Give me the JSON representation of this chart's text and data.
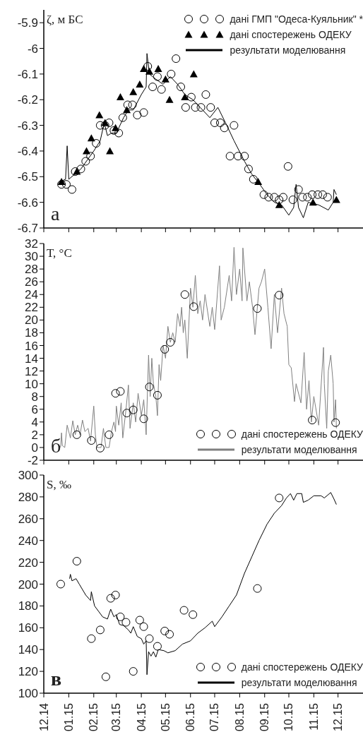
{
  "chart_data": [
    {
      "type": "line",
      "ylabel": "ζ, м БС",
      "annotations": [
        "а"
      ],
      "legend": "top right",
      "tick_labels": "y",
      "xlim": [
        "2014-12-01",
        "2016-01-01"
      ],
      "xticks": [
        {
          "value": "2014-12-01",
          "label": null
        },
        {
          "value": "2015-01-01",
          "label": null
        },
        {
          "value": "2015-02-01",
          "label": null
        },
        {
          "value": "2015-03-01",
          "label": null
        },
        {
          "value": "2015-04-01",
          "label": null
        },
        {
          "value": "2015-05-01",
          "label": null
        },
        {
          "value": "2015-06-01",
          "label": null
        },
        {
          "value": "2015-07-01",
          "label": null
        },
        {
          "value": "2015-08-01",
          "label": null
        },
        {
          "value": "2015-09-01",
          "label": null
        },
        {
          "value": "2015-10-01",
          "label": null
        },
        {
          "value": "2015-11-01",
          "label": null
        },
        {
          "value": "2015-12-01",
          "label": null
        }
      ],
      "ylim": [
        -6.7,
        -5.85
      ],
      "yticks": [
        -6.7,
        -6.6,
        -6.5,
        -6.4,
        -6.3,
        -6.2,
        -6.1,
        -6,
        -5.9
      ],
      "series": [
        {
          "name": "дані ГМП \"Одеса-Куяльник\" *",
          "type": "scatter",
          "marker": "circle",
          "color": "#000000",
          "x": [
            "2014-12-23",
            "2014-12-29",
            "2015-01-05",
            "2015-01-09",
            "2015-01-16",
            "2015-01-22",
            "2015-01-28",
            "2015-02-04",
            "2015-02-09",
            "2015-02-15",
            "2015-02-20",
            "2015-02-26",
            "2015-03-04",
            "2015-03-09",
            "2015-03-15",
            "2015-03-21",
            "2015-03-27",
            "2015-04-04",
            "2015-04-09",
            "2015-04-15",
            "2015-04-21",
            "2015-04-26",
            "2015-05-08",
            "2015-05-14",
            "2015-05-20",
            "2015-05-26",
            "2015-06-02",
            "2015-06-07",
            "2015-06-14",
            "2015-06-20",
            "2015-06-26",
            "2015-07-01",
            "2015-07-08",
            "2015-07-13",
            "2015-07-20",
            "2015-07-25",
            "2015-07-30",
            "2015-08-07",
            "2015-08-12",
            "2015-08-18",
            "2015-08-31",
            "2015-09-06",
            "2015-09-13",
            "2015-09-19",
            "2015-09-24",
            "2015-09-30",
            "2015-10-06",
            "2015-10-13",
            "2015-10-18",
            "2015-10-24",
            "2015-10-30",
            "2015-11-06",
            "2015-11-12",
            "2015-11-18"
          ],
          "values": [
            -6.53,
            -6.53,
            -6.55,
            -6.48,
            -6.47,
            -6.44,
            -6.42,
            -6.37,
            -6.3,
            -6.3,
            -6.29,
            -6.32,
            -6.33,
            -6.27,
            -6.22,
            -6.22,
            -6.26,
            -6.25,
            -6.07,
            -6.15,
            -6.11,
            -6.16,
            -6.1,
            -6.04,
            -6.15,
            -6.23,
            -6.19,
            -6.23,
            -6.23,
            -6.18,
            -6.23,
            -6.29,
            -6.29,
            -6.31,
            -6.42,
            -6.3,
            -6.42,
            -6.42,
            -6.47,
            -6.51,
            -6.57,
            -6.58,
            -6.58,
            -6.59,
            -6.58,
            -6.46,
            -6.59,
            -6.55,
            -6.58,
            -6.58,
            -6.57,
            -6.57,
            -6.57,
            -6.58
          ]
        },
        {
          "name": "дані спостережень ОДЕКУ",
          "type": "scatter",
          "marker": "triangle",
          "color": "#000000",
          "x": [
            "2014-12-23",
            "2015-01-11",
            "2015-01-23",
            "2015-01-29",
            "2015-02-08",
            "2015-02-15",
            "2015-02-21",
            "2015-02-28",
            "2015-03-06",
            "2015-03-14",
            "2015-03-22",
            "2015-03-30",
            "2015-04-04",
            "2015-04-11",
            "2015-04-22",
            "2015-05-01",
            "2015-05-06",
            "2015-05-25",
            "2015-06-05",
            "2015-08-24",
            "2015-09-19",
            "2015-10-31",
            "2015-11-29"
          ],
          "values": [
            -6.52,
            -6.48,
            -6.4,
            -6.35,
            -6.26,
            -6.29,
            -6.4,
            -6.31,
            -6.19,
            -6.24,
            -6.17,
            -6.14,
            -6.08,
            -6.09,
            -6.08,
            -6.12,
            -6.2,
            -6.19,
            -6.1,
            -6.52,
            -6.61,
            -6.6,
            -6.59
          ]
        },
        {
          "name": "результати моделювання",
          "type": "line",
          "color": "#000000",
          "x": [
            "2014-12-21",
            "2014-12-28",
            "2014-12-30",
            "2015-01-01",
            "2015-01-16",
            "2015-02-01",
            "2015-02-09",
            "2015-02-14",
            "2015-02-18",
            "2015-02-23",
            "2015-03-01",
            "2015-03-10",
            "2015-03-16",
            "2015-03-22",
            "2015-04-01",
            "2015-04-07",
            "2015-04-08",
            "2015-04-11",
            "2015-04-19",
            "2015-04-28",
            "2015-05-07",
            "2015-05-16",
            "2015-05-25",
            "2015-06-04",
            "2015-06-13",
            "2015-06-25",
            "2015-07-05",
            "2015-07-16",
            "2015-07-25",
            "2015-08-07",
            "2015-08-16",
            "2015-08-26",
            "2015-09-04",
            "2015-09-13",
            "2015-09-22",
            "2015-10-01",
            "2015-10-07",
            "2015-10-10",
            "2015-10-13",
            "2015-10-19",
            "2015-10-25",
            "2015-11-07",
            "2015-11-19",
            "2015-11-25",
            "2015-11-26",
            "2015-11-29"
          ],
          "values": [
            -6.52,
            -6.51,
            -6.38,
            -6.51,
            -6.47,
            -6.4,
            -6.36,
            -6.29,
            -6.34,
            -6.33,
            -6.33,
            -6.27,
            -6.24,
            -6.24,
            -6.18,
            -6.15,
            -6.02,
            -6.1,
            -6.12,
            -6.14,
            -6.11,
            -6.14,
            -6.18,
            -6.2,
            -6.23,
            -6.27,
            -6.23,
            -6.3,
            -6.36,
            -6.44,
            -6.49,
            -6.53,
            -6.57,
            -6.6,
            -6.61,
            -6.65,
            -6.62,
            -6.53,
            -6.62,
            -6.66,
            -6.6,
            -6.61,
            -6.63,
            -6.6,
            -6.55,
            -6.57
          ]
        }
      ]
    },
    {
      "type": "line",
      "ylabel": "T, °C",
      "annotations": [
        "б"
      ],
      "legend": "bottom right",
      "tick_labels": "y",
      "xlim": [
        "2014-12-01",
        "2016-01-01"
      ],
      "xticks": [
        {
          "value": "2014-12-01",
          "label": null
        },
        {
          "value": "2015-01-01",
          "label": null
        },
        {
          "value": "2015-02-01",
          "label": null
        },
        {
          "value": "2015-03-01",
          "label": null
        },
        {
          "value": "2015-04-01",
          "label": null
        },
        {
          "value": "2015-05-01",
          "label": null
        },
        {
          "value": "2015-06-01",
          "label": null
        },
        {
          "value": "2015-07-01",
          "label": null
        },
        {
          "value": "2015-08-01",
          "label": null
        },
        {
          "value": "2015-09-01",
          "label": null
        },
        {
          "value": "2015-10-01",
          "label": null
        },
        {
          "value": "2015-11-01",
          "label": null
        },
        {
          "value": "2015-12-01",
          "label": null
        }
      ],
      "ylim": [
        -2,
        32
      ],
      "yticks": [
        -2,
        0,
        2,
        4,
        6,
        8,
        10,
        12,
        14,
        16,
        18,
        20,
        22,
        24,
        26,
        28,
        30,
        32
      ],
      "series": [
        {
          "name": "дані спостережень ОДЕКУ",
          "type": "scatter",
          "marker": "circle",
          "color": "#000000",
          "x": [
            "2015-01-11",
            "2015-01-29",
            "2015-02-09",
            "2015-02-20",
            "2015-02-28",
            "2015-03-06",
            "2015-03-14",
            "2015-03-22",
            "2015-04-04",
            "2015-04-11",
            "2015-04-21",
            "2015-04-30",
            "2015-05-07",
            "2015-05-25",
            "2015-06-05",
            "2015-08-23",
            "2015-09-19",
            "2015-10-30",
            "2015-11-28"
          ],
          "values": [
            2,
            1.1,
            -0.1,
            2,
            8.5,
            8.8,
            5.4,
            5.9,
            4.5,
            9.5,
            8.2,
            15.4,
            16.5,
            24,
            22.1,
            21.8,
            23.9,
            4.3,
            3.9
          ]
        },
        {
          "name": "результати моделювання",
          "type": "line",
          "color": "#808080",
          "x": [
            "2014-12-21",
            "2014-12-22",
            "2014-12-23",
            "2014-12-24",
            "2014-12-27",
            "2014-12-30",
            "2015-01-03",
            "2015-01-06",
            "2015-01-09",
            "2015-01-12",
            "2015-01-15",
            "2015-01-18",
            "2015-01-21",
            "2015-01-25",
            "2015-01-28",
            "2015-02-01",
            "2015-02-03",
            "2015-02-05",
            "2015-02-10",
            "2015-02-13",
            "2015-02-16",
            "2015-02-20",
            "2015-02-23",
            "2015-02-26",
            "2015-02-28",
            "2015-03-01",
            "2015-03-04",
            "2015-03-07",
            "2015-03-09",
            "2015-03-13",
            "2015-03-16",
            "2015-03-18",
            "2015-03-22",
            "2015-03-25",
            "2015-03-28",
            "2015-04-01",
            "2015-04-04",
            "2015-04-07",
            "2015-04-10",
            "2015-04-12",
            "2015-04-14",
            "2015-04-16",
            "2015-04-19",
            "2015-04-21",
            "2015-04-23",
            "2015-04-25",
            "2015-04-28",
            "2015-05-01",
            "2015-05-04",
            "2015-05-07",
            "2015-05-10",
            "2015-05-13",
            "2015-05-16",
            "2015-05-19",
            "2015-05-21",
            "2015-05-23",
            "2015-05-25",
            "2015-05-28",
            "2015-06-01",
            "2015-06-04",
            "2015-06-07",
            "2015-06-10",
            "2015-06-13",
            "2015-06-16",
            "2015-06-19",
            "2015-06-25",
            "2015-06-28",
            "2015-07-01",
            "2015-07-07",
            "2015-07-09",
            "2015-07-13",
            "2015-07-19",
            "2015-07-22",
            "2015-07-25",
            "2015-07-28",
            "2015-08-01",
            "2015-08-04",
            "2015-08-05",
            "2015-08-10",
            "2015-08-13",
            "2015-08-17",
            "2015-08-20",
            "2015-08-25",
            "2015-08-28",
            "2015-09-01",
            "2015-09-05",
            "2015-09-09",
            "2015-09-13",
            "2015-09-17",
            "2015-09-22",
            "2015-09-25",
            "2015-09-29",
            "2015-10-01",
            "2015-10-04",
            "2015-10-08",
            "2015-10-10",
            "2015-10-16",
            "2015-10-20",
            "2015-10-23",
            "2015-10-26",
            "2015-10-29",
            "2015-11-01",
            "2015-11-07",
            "2015-11-13",
            "2015-11-14",
            "2015-11-17",
            "2015-11-19",
            "2015-11-22",
            "2015-11-25",
            "2015-11-26",
            "2015-11-28",
            "2015-11-29"
          ],
          "values": [
            0,
            0.2,
            2.3,
            0.3,
            0,
            3.5,
            1.5,
            4.2,
            2,
            3.5,
            2,
            4.3,
            2.5,
            3,
            1,
            6.5,
            2,
            0,
            0,
            3,
            0,
            0,
            2.5,
            4,
            2.5,
            6.5,
            3.5,
            7,
            1.5,
            6,
            9.8,
            3,
            7,
            4,
            8.5,
            5,
            7.5,
            2,
            14.5,
            8,
            14,
            10,
            8,
            5,
            13,
            10.5,
            16,
            14,
            19,
            16.5,
            18,
            16.5,
            21,
            19,
            22,
            18,
            20,
            14,
            25,
            22,
            27,
            21,
            23,
            20,
            24,
            19,
            22,
            18.5,
            28.5,
            20,
            22,
            27,
            23,
            31.4,
            24,
            28,
            23,
            31.3,
            23,
            26,
            22,
            17.7,
            25,
            26,
            28,
            22,
            15.5,
            24,
            18,
            25,
            21,
            19,
            13,
            12.5,
            7.2,
            10,
            7,
            14.9,
            6,
            10.5,
            4,
            8,
            3.5,
            15.7,
            10,
            3,
            12,
            14.5,
            10,
            4,
            7.5,
            3
          ]
        }
      ]
    },
    {
      "type": "line",
      "ylabel": "S, ‰",
      "annotations": [
        "в"
      ],
      "legend": "bottom right",
      "xlim": [
        "2014-12-01",
        "2016-01-01"
      ],
      "xticks": [
        {
          "value": "2014-12-01",
          "label": "12.14"
        },
        {
          "value": "2015-01-01",
          "label": "01.15"
        },
        {
          "value": "2015-02-01",
          "label": "02.15"
        },
        {
          "value": "2015-03-01",
          "label": "03.15"
        },
        {
          "value": "2015-04-01",
          "label": "04.15"
        },
        {
          "value": "2015-05-01",
          "label": "05.15"
        },
        {
          "value": "2015-06-01",
          "label": "06.15"
        },
        {
          "value": "2015-07-01",
          "label": "07.15"
        },
        {
          "value": "2015-08-01",
          "label": "08.15"
        },
        {
          "value": "2015-09-01",
          "label": "09.15"
        },
        {
          "value": "2015-10-01",
          "label": "10.15"
        },
        {
          "value": "2015-11-01",
          "label": "11.15"
        },
        {
          "value": "2015-12-01",
          "label": "12.15"
        }
      ],
      "ylim": [
        100,
        300
      ],
      "yticks": [
        100,
        120,
        140,
        160,
        180,
        200,
        220,
        240,
        260,
        280,
        300
      ],
      "series": [
        {
          "name": "дані спостережень ОДЕКУ",
          "type": "scatter",
          "marker": "circle",
          "color": "#000000",
          "x": [
            "2014-12-22",
            "2015-01-11",
            "2015-01-29",
            "2015-02-09",
            "2015-02-16",
            "2015-02-22",
            "2015-02-28",
            "2015-03-06",
            "2015-03-13",
            "2015-03-22",
            "2015-03-30",
            "2015-04-04",
            "2015-04-11",
            "2015-04-21",
            "2015-04-30",
            "2015-05-06",
            "2015-05-24",
            "2015-06-04",
            "2015-08-23",
            "2015-09-19"
          ],
          "values": [
            200,
            221,
            150,
            158,
            115,
            187,
            190,
            170,
            165,
            120,
            167,
            161,
            150,
            143,
            157,
            154,
            176,
            172,
            196,
            279
          ]
        },
        {
          "name": "результати моделювання",
          "type": "line",
          "color": "#000000",
          "x": [
            "2015-01-02",
            "2015-01-03",
            "2015-01-05",
            "2015-01-10",
            "2015-01-14",
            "2015-01-22",
            "2015-01-28",
            "2015-01-29",
            "2015-02-02",
            "2015-02-07",
            "2015-02-12",
            "2015-02-18",
            "2015-02-22",
            "2015-02-26",
            "2015-03-01",
            "2015-03-05",
            "2015-03-10",
            "2015-03-16",
            "2015-03-19",
            "2015-03-22",
            "2015-03-27",
            "2015-04-01",
            "2015-04-04",
            "2015-04-07",
            "2015-04-08",
            "2015-04-10",
            "2015-04-13",
            "2015-04-16",
            "2015-04-19",
            "2015-04-22",
            "2015-04-29",
            "2015-05-04",
            "2015-05-13",
            "2015-05-22",
            "2015-06-01",
            "2015-06-10",
            "2015-06-19",
            "2015-06-28",
            "2015-07-01",
            "2015-07-10",
            "2015-07-19",
            "2015-07-28",
            "2015-08-07",
            "2015-08-16",
            "2015-08-25",
            "2015-09-04",
            "2015-09-13",
            "2015-09-22",
            "2015-09-28",
            "2015-10-03",
            "2015-10-07",
            "2015-10-11",
            "2015-10-17",
            "2015-10-19",
            "2015-10-25",
            "2015-11-01",
            "2015-11-10",
            "2015-11-14",
            "2015-11-22",
            "2015-11-26",
            "2015-11-29"
          ],
          "values": [
            205,
            209,
            203,
            205,
            200,
            190,
            185,
            193,
            180,
            175,
            170,
            168,
            177,
            170,
            172,
            163,
            162,
            158,
            155,
            161,
            152,
            150,
            145,
            148,
            117,
            138,
            134,
            138,
            133,
            140,
            139,
            137,
            139,
            145,
            148,
            155,
            160,
            166,
            161,
            170,
            180,
            190,
            210,
            225,
            240,
            255,
            265,
            272,
            279,
            283,
            277,
            283,
            283,
            275,
            277,
            281,
            281,
            279,
            284,
            278,
            273
          ]
        }
      ]
    }
  ]
}
